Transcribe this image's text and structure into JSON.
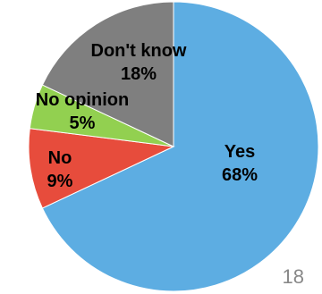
{
  "chart_data": {
    "type": "pie",
    "slices": [
      {
        "label": "Yes",
        "value": 68,
        "value_label": "68%",
        "color": "#5DADE2"
      },
      {
        "label": "No",
        "value": 9,
        "value_label": "9%",
        "color": "#E74C3C"
      },
      {
        "label": "No opinion",
        "value": 5,
        "value_label": "5%",
        "color": "#92D050"
      },
      {
        "label": "Don't know",
        "value": 18,
        "value_label": "18%",
        "color": "#7F7F7F"
      }
    ],
    "start_angle_deg": 0,
    "direction": "clockwise",
    "legend": "none",
    "title": ""
  },
  "page": {
    "number": "18"
  }
}
